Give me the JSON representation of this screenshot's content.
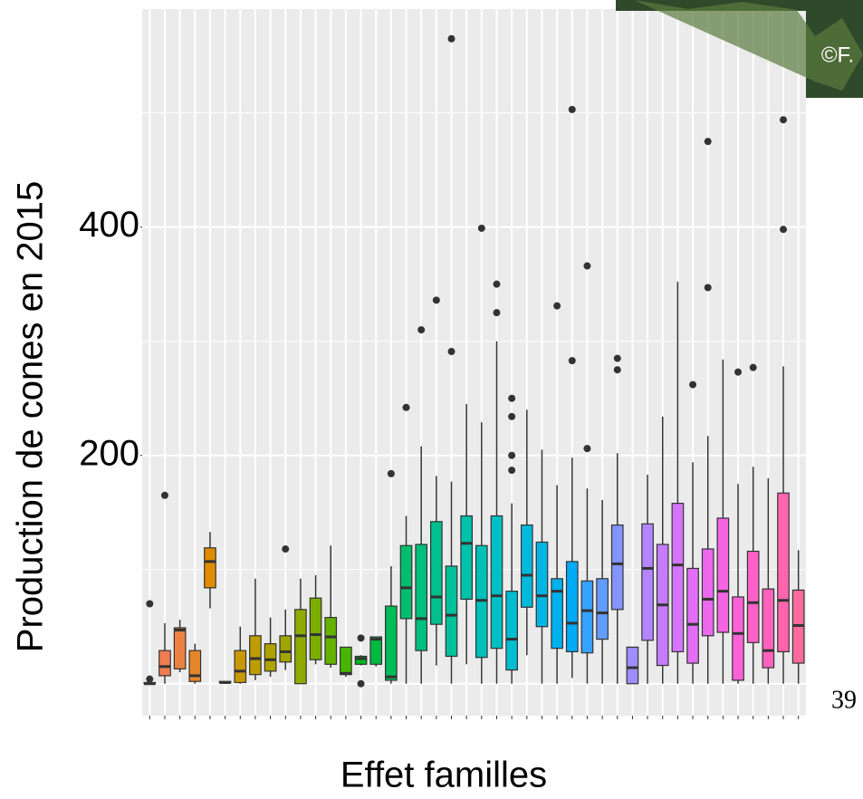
{
  "chart_data": {
    "type": "boxplot",
    "y_label": "Production de cones en 2015",
    "x_label": "Effet familles",
    "categories": [
      null,
      null,
      null,
      null,
      null,
      null,
      null,
      null,
      null,
      null,
      null,
      null,
      null,
      null,
      null,
      null,
      null,
      null,
      null,
      null,
      null,
      null,
      null,
      null,
      null,
      null,
      null,
      null,
      null,
      null,
      null,
      null,
      null,
      null,
      null,
      null,
      null,
      null,
      null,
      null,
      null,
      null,
      null,
      null
    ],
    "ylim": [
      -28,
      591
    ],
    "yticks": [
      200,
      400
    ],
    "grid": true,
    "grid_lines": [
      0,
      100,
      200,
      300,
      400,
      500
    ],
    "boxes": [
      {
        "color": "#F8766D",
        "low": 0,
        "q1": 0,
        "median": 0,
        "q3": 1,
        "high": 2,
        "outliers": [
          70,
          4
        ]
      },
      {
        "color": "#F07D52",
        "low": 0,
        "q1": 7,
        "median": 15,
        "q3": 29,
        "high": 53,
        "outliers": [
          165
        ]
      },
      {
        "color": "#EC8141",
        "low": 10,
        "q1": 13,
        "median": 47,
        "q3": 49,
        "high": 56,
        "outliers": []
      },
      {
        "color": "#E6862A",
        "low": 0,
        "q1": 2,
        "median": 7,
        "q3": 29,
        "high": 35,
        "outliers": []
      },
      {
        "color": "#DE8C00",
        "low": 66,
        "q1": 84,
        "median": 107,
        "q3": 119,
        "high": 133,
        "outliers": []
      },
      {
        "color": "#D49200",
        "low": 0,
        "q1": 1,
        "median": 1,
        "q3": 2,
        "high": 2,
        "outliers": []
      },
      {
        "color": "#C99800",
        "low": 0,
        "q1": 1,
        "median": 11,
        "q3": 29,
        "high": 50,
        "outliers": []
      },
      {
        "color": "#BD9D00",
        "low": 3,
        "q1": 8,
        "median": 22,
        "q3": 42,
        "high": 92,
        "outliers": []
      },
      {
        "color": "#AFA200",
        "low": 6,
        "q1": 11,
        "median": 21,
        "q3": 35,
        "high": 58,
        "outliers": []
      },
      {
        "color": "#A0A600",
        "low": 12,
        "q1": 19,
        "median": 28,
        "q3": 42,
        "high": 65,
        "outliers": [
          118
        ]
      },
      {
        "color": "#8FAA00",
        "low": 0,
        "q1": 0,
        "median": 42,
        "q3": 65,
        "high": 92,
        "outliers": []
      },
      {
        "color": "#7CAE00",
        "low": 17,
        "q1": 21,
        "median": 43,
        "q3": 75,
        "high": 95,
        "outliers": []
      },
      {
        "color": "#64B200",
        "low": 14,
        "q1": 17,
        "median": 41,
        "q3": 58,
        "high": 121,
        "outliers": []
      },
      {
        "color": "#45B500",
        "low": 6,
        "q1": 8,
        "median": 9,
        "q3": 32,
        "high": 32,
        "outliers": []
      },
      {
        "color": "#00B81F",
        "low": 16,
        "q1": 17,
        "median": 22,
        "q3": 24,
        "high": 25,
        "outliers": [
          0,
          40
        ]
      },
      {
        "color": "#00BA42",
        "low": 15,
        "q1": 17,
        "median": 39,
        "q3": 41,
        "high": 41,
        "outliers": []
      },
      {
        "color": "#00BC59",
        "low": 0,
        "q1": 3,
        "median": 6,
        "q3": 68,
        "high": 103,
        "outliers": [
          184
        ]
      },
      {
        "color": "#00BE6C",
        "low": 0,
        "q1": 57,
        "median": 84,
        "q3": 121,
        "high": 147,
        "outliers": [
          242
        ]
      },
      {
        "color": "#00BF7D",
        "low": 0,
        "q1": 29,
        "median": 57,
        "q3": 122,
        "high": 208,
        "outliers": [
          310
        ]
      },
      {
        "color": "#00C08D",
        "low": 16,
        "q1": 52,
        "median": 76,
        "q3": 142,
        "high": 182,
        "outliers": [
          336
        ]
      },
      {
        "color": "#00C19C",
        "low": 0,
        "q1": 24,
        "median": 60,
        "q3": 103,
        "high": 177,
        "outliers": [
          291,
          565
        ]
      },
      {
        "color": "#00C1AA",
        "low": 17,
        "q1": 74,
        "median": 123,
        "q3": 147,
        "high": 245,
        "outliers": []
      },
      {
        "color": "#00C0B8",
        "low": 0,
        "q1": 23,
        "median": 73,
        "q3": 121,
        "high": 229,
        "outliers": [
          399
        ]
      },
      {
        "color": "#00BFC4",
        "low": 0,
        "q1": 31,
        "median": 77,
        "q3": 147,
        "high": 300,
        "outliers": [
          350,
          325
        ]
      },
      {
        "color": "#00BDD0",
        "low": 0,
        "q1": 12,
        "median": 39,
        "q3": 81,
        "high": 158,
        "outliers": [
          250,
          234,
          200,
          187
        ]
      },
      {
        "color": "#00BADB",
        "low": 25,
        "q1": 67,
        "median": 95,
        "q3": 139,
        "high": 240,
        "outliers": []
      },
      {
        "color": "#00B6E5",
        "low": 0,
        "q1": 50,
        "median": 77,
        "q3": 124,
        "high": 205,
        "outliers": []
      },
      {
        "color": "#00B1EE",
        "low": 0,
        "q1": 31,
        "median": 81,
        "q3": 92,
        "high": 174,
        "outliers": [
          331
        ]
      },
      {
        "color": "#00ABF6",
        "low": 5,
        "q1": 28,
        "median": 53,
        "q3": 107,
        "high": 198,
        "outliers": [
          283,
          503
        ]
      },
      {
        "color": "#35A2FF",
        "low": 0,
        "q1": 27,
        "median": 64,
        "q3": 90,
        "high": 171,
        "outliers": [
          206,
          366
        ]
      },
      {
        "color": "#619CFF",
        "low": 0,
        "q1": 39,
        "median": 62,
        "q3": 92,
        "high": 161,
        "outliers": []
      },
      {
        "color": "#8494FF",
        "low": 0,
        "q1": 65,
        "median": 105,
        "q3": 139,
        "high": 202,
        "outliers": [
          285,
          275
        ]
      },
      {
        "color": "#9F8CFF",
        "low": 0,
        "q1": 0,
        "median": 14,
        "q3": 32,
        "high": 32,
        "outliers": []
      },
      {
        "color": "#B584FF",
        "low": 0,
        "q1": 38,
        "median": 101,
        "q3": 140,
        "high": 183,
        "outliers": []
      },
      {
        "color": "#C77CFF",
        "low": 0,
        "q1": 16,
        "median": 69,
        "q3": 122,
        "high": 234,
        "outliers": []
      },
      {
        "color": "#D575FE",
        "low": 0,
        "q1": 28,
        "median": 104,
        "q3": 158,
        "high": 352,
        "outliers": []
      },
      {
        "color": "#E26EF7",
        "low": 0,
        "q1": 18,
        "median": 52,
        "q3": 101,
        "high": 194,
        "outliers": [
          262
        ]
      },
      {
        "color": "#EC69EF",
        "low": 0,
        "q1": 42,
        "median": 74,
        "q3": 118,
        "high": 217,
        "outliers": [
          347,
          475
        ]
      },
      {
        "color": "#F564E3",
        "low": 0,
        "q1": 45,
        "median": 81,
        "q3": 145,
        "high": 284,
        "outliers": []
      },
      {
        "color": "#FB61D7",
        "low": 0,
        "q1": 3,
        "median": 44,
        "q3": 76,
        "high": 175,
        "outliers": [
          273
        ]
      },
      {
        "color": "#FF61C9",
        "low": 0,
        "q1": 36,
        "median": 71,
        "q3": 116,
        "high": 190,
        "outliers": [
          277
        ]
      },
      {
        "color": "#FF62BC",
        "low": 0,
        "q1": 14,
        "median": 29,
        "q3": 83,
        "high": 180,
        "outliers": []
      },
      {
        "color": "#FF65AE",
        "low": 0,
        "q1": 28,
        "median": 73,
        "q3": 167,
        "high": 278,
        "outliers": [
          494,
          398
        ]
      },
      {
        "color": "#FF6A9E",
        "low": 0,
        "q1": 18,
        "median": 51,
        "q3": 82,
        "high": 117,
        "outliers": []
      }
    ]
  },
  "slide": {
    "photo_credit": "©F.",
    "page_number": "39"
  }
}
